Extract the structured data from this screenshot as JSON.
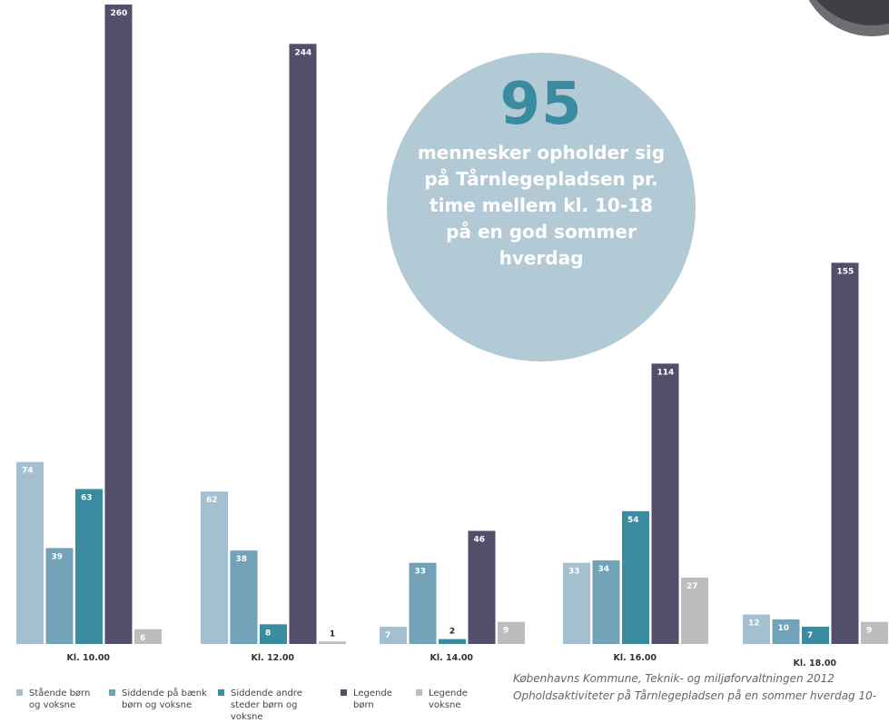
{
  "chart_data": {
    "type": "bar",
    "categories": [
      "Kl. 10.00",
      "Kl. 12.00",
      "Kl. 14.00",
      "Kl. 16.00",
      "Kl. 18.00"
    ],
    "series": [
      {
        "name": "Stående børn og voksne",
        "color": "#a3bfd0",
        "values": [
          74,
          62,
          7,
          33,
          12
        ]
      },
      {
        "name": "Siddende på bænk børn og voksne",
        "color": "#72a2b7",
        "values": [
          39,
          38,
          33,
          34,
          10
        ]
      },
      {
        "name": "Siddende andre steder børn og voksne",
        "color": "#3a8aa0",
        "values": [
          63,
          8,
          2,
          54,
          7
        ]
      },
      {
        "name": "Legende børn",
        "color": "#534f6a",
        "values": [
          260,
          244,
          46,
          114,
          155
        ]
      },
      {
        "name": "Legende voksne",
        "color": "#bdbdbf",
        "values": [
          6,
          1,
          9,
          27,
          9
        ]
      }
    ],
    "annotation": {
      "headline": "95",
      "text": "mennesker opholder sig på Tårnlegepladsen pr. time mellem kl. 10-18 på en god sommer hverdag"
    },
    "source": [
      "Københavns Kommune, Teknik- og miljøforvaltningen 2012",
      "Opholdsaktiviteter på Tårnlegepladsen på en sommer hverdag 10-"
    ]
  }
}
